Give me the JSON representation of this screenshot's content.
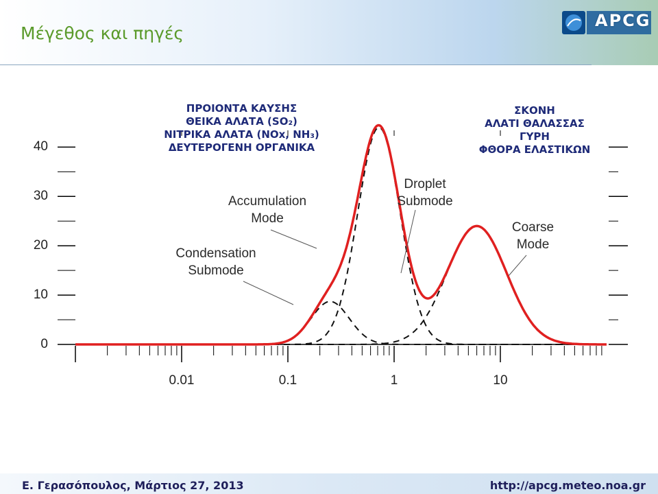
{
  "header": {
    "title": "Μέγεθος και πηγές",
    "logo_text": "APCG"
  },
  "footer": {
    "author_date": "Ε. Γερασόπουλος, Μάρτιος 27, 2013",
    "url": "http://apcg.meteo.noa.gr"
  },
  "sources": {
    "fine": [
      "ΠΡΟΙΟΝΤΑ ΚΑΥΣΗΣ",
      "ΘΕΙΚΑ ΑΛΑΤΑ (SO₂)",
      "ΝΙΤΡΙΚΑ ΑΛΑΤΑ (NOx, NH₃)",
      "ΔΕΥΤΕΡΟΓΕΝΗ ΟΡΓΑΝΙΚΑ"
    ],
    "coarse": [
      "ΣΚΟΝΗ",
      "ΑΛΑΤΙ ΘΑΛΑΣΣΑΣ",
      "ΓΥΡΗ",
      "ΦΘΟΡΑ ΕΛΑΣΤΙΚΩΝ"
    ]
  },
  "labels": {
    "accumulation": [
      "Accumulation",
      "Mode"
    ],
    "condensation": [
      "Condensation",
      "Submode"
    ],
    "droplet": [
      "Droplet",
      "Submode"
    ],
    "coarse": [
      "Coarse",
      "Mode"
    ]
  },
  "chart_data": {
    "type": "line",
    "x_scale": "log",
    "xlim": [
      0.001,
      100
    ],
    "ylim": [
      0,
      42
    ],
    "x_tick_labels": [
      "0.01",
      "0.1",
      "1",
      "10"
    ],
    "y_tick_labels": [
      "0",
      "10",
      "20",
      "30",
      "40"
    ],
    "x_ticks": [
      0.01,
      0.1,
      1,
      10
    ],
    "y_ticks": [
      0,
      10,
      20,
      30,
      40
    ],
    "total_color": "#e02020",
    "mode_color": "#111111",
    "modes": [
      {
        "name": "Condensation Submode",
        "mu": 0.25,
        "sigma": 0.18,
        "amp": 8.7
      },
      {
        "name": "Droplet Submode",
        "mu": 0.72,
        "sigma": 0.2,
        "amp": 44
      },
      {
        "name": "Coarse Mode",
        "mu": 6.0,
        "sigma": 0.28,
        "amp": 24
      }
    ]
  }
}
